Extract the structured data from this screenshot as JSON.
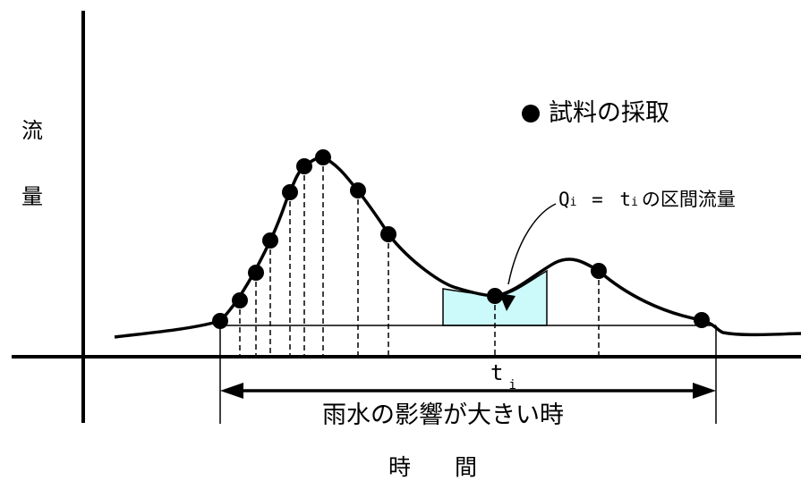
{
  "axes": {
    "y_label_chars": [
      "流",
      "量"
    ],
    "x_label_chars": [
      "時",
      "間"
    ]
  },
  "legend": {
    "icon": "filled-circle-icon",
    "label": "試料の採取"
  },
  "annotation": {
    "q_symbol": "Q",
    "q_subscript": "i",
    "equals": " = ",
    "t_symbol": "t",
    "t_subscript": "i",
    "suffix": "の区間流量"
  },
  "interval_label": {
    "symbol": "t",
    "subscript": "i"
  },
  "range_label": "雨水の影響が大きい時",
  "colors": {
    "line": "#000000",
    "highlight_fill": "#ccf9f9",
    "background": "#ffffff"
  },
  "sample_count": 13
}
